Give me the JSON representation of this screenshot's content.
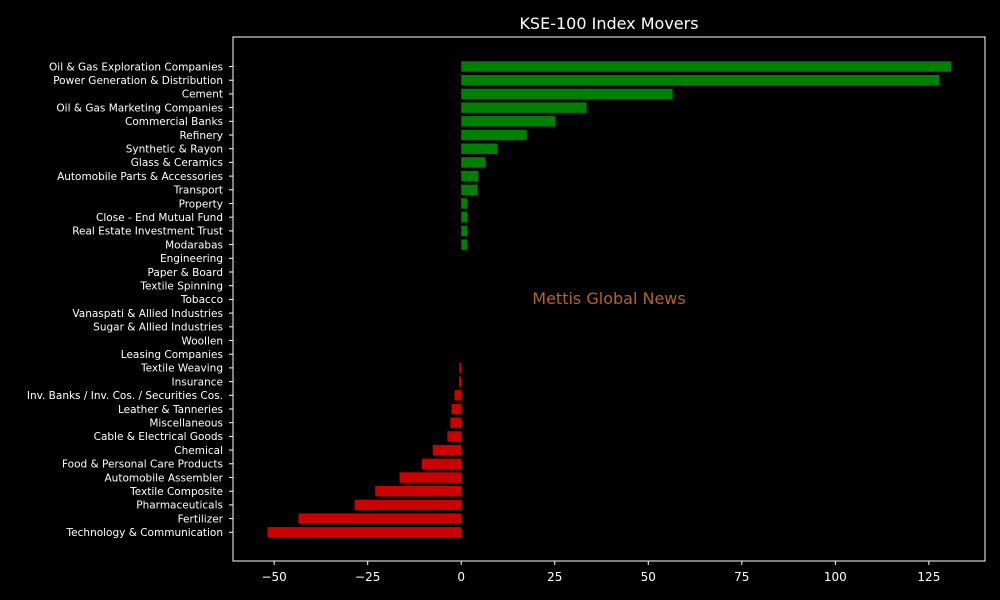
{
  "chart_data": {
    "type": "bar",
    "orientation": "horizontal",
    "title": "KSE-100 Index Movers",
    "xlabel": "",
    "ylabel": "",
    "xlim": [
      -61,
      140
    ],
    "xticks": [
      -50,
      -25,
      0,
      25,
      50,
      75,
      100,
      125
    ],
    "xtick_labels": [
      "−50",
      "−25",
      "0",
      "25",
      "50",
      "75",
      "100",
      "125"
    ],
    "grid": false,
    "watermark": "Mettis Global News",
    "colors": {
      "background": "#000000",
      "axes": "#ffffff",
      "text": "#ffffff",
      "positive": "#008000",
      "negative": "#cc0000",
      "watermark": "#b5651d"
    },
    "categories": [
      "Oil & Gas Exploration Companies",
      "Power Generation & Distribution",
      "Cement",
      "Oil & Gas Marketing Companies",
      "Commercial Banks",
      "Refinery",
      "Synthetic & Rayon",
      "Glass & Ceramics",
      "Automobile Parts & Accessories",
      "Transport",
      "Property",
      "Close - End Mutual Fund",
      "Real Estate Investment Trust",
      "Modarabas",
      "Engineering",
      "Paper & Board",
      "Textile Spinning",
      "Tobacco",
      "Vanaspati & Allied Industries",
      "Sugar & Allied Industries",
      "Woollen",
      "Leasing Companies",
      "Textile Weaving",
      "Insurance",
      "Inv. Banks / Inv. Cos. / Securities Cos.",
      "Leather & Tanneries",
      "Miscellaneous",
      "Cable & Electrical Goods",
      "Chemical",
      "Food & Personal Care Products",
      "Automobile Assembler",
      "Textile Composite",
      "Pharmaceuticals",
      "Fertilizer",
      "Technology & Communication"
    ],
    "values": [
      131,
      127.8,
      56.5,
      33.5,
      25.2,
      17.5,
      9.7,
      6.5,
      4.6,
      4.4,
      1.6,
      1.6,
      1.6,
      1.6,
      0,
      0,
      0,
      0,
      0,
      0,
      0,
      0,
      -0.5,
      -0.6,
      -1.8,
      -2.6,
      -2.9,
      -3.7,
      -7.6,
      -10.5,
      -16.5,
      -23,
      -28.5,
      -43.5,
      -51.8
    ]
  }
}
